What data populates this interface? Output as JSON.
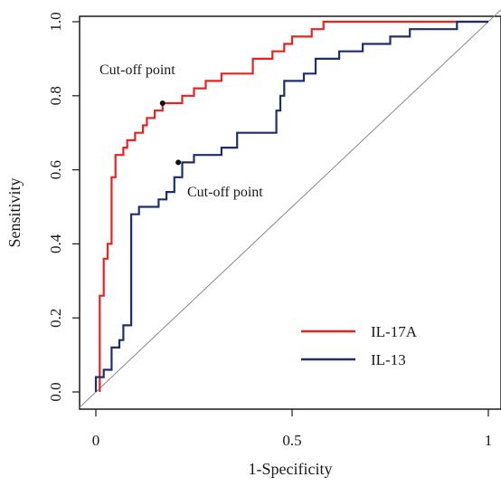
{
  "chart_data": {
    "type": "line",
    "title": "",
    "xlabel": "1-Specificity",
    "ylabel": "Sensitivity",
    "xlim": [
      0,
      1
    ],
    "ylim": [
      0,
      1
    ],
    "x_ticks": [
      0,
      0.5,
      1
    ],
    "x_tick_labels": [
      "0",
      "0.5",
      "1"
    ],
    "y_ticks": [
      0,
      0.2,
      0.4,
      0.6,
      0.8,
      1
    ],
    "y_tick_labels": [
      "0.0",
      "0.2",
      "0.4",
      "0.6",
      "0.8",
      "1.0"
    ],
    "grid": false,
    "legend_position": "bottom-right",
    "reference_line": {
      "x": [
        0,
        1
      ],
      "y": [
        0,
        1
      ],
      "color": "#888888"
    },
    "series": [
      {
        "name": "IL-17A",
        "color": "#e8231f",
        "x": [
          0.01,
          0.01,
          0.02,
          0.02,
          0.03,
          0.03,
          0.04,
          0.04,
          0.05,
          0.05,
          0.07,
          0.07,
          0.08,
          0.08,
          0.1,
          0.1,
          0.12,
          0.12,
          0.13,
          0.13,
          0.15,
          0.15,
          0.17,
          0.17,
          0.22,
          0.22,
          0.25,
          0.25,
          0.28,
          0.28,
          0.32,
          0.32,
          0.35,
          0.35,
          0.4,
          0.4,
          0.45,
          0.45,
          0.48,
          0.48,
          0.5,
          0.5,
          0.53,
          0.53,
          0.55,
          0.55,
          0.58,
          0.58,
          0.6,
          1.0
        ],
        "y": [
          0.0,
          0.26,
          0.26,
          0.36,
          0.36,
          0.4,
          0.4,
          0.58,
          0.58,
          0.64,
          0.64,
          0.66,
          0.66,
          0.68,
          0.68,
          0.7,
          0.7,
          0.72,
          0.72,
          0.74,
          0.74,
          0.76,
          0.76,
          0.78,
          0.78,
          0.8,
          0.8,
          0.82,
          0.82,
          0.84,
          0.84,
          0.86,
          0.86,
          0.86,
          0.86,
          0.9,
          0.9,
          0.92,
          0.92,
          0.94,
          0.94,
          0.96,
          0.96,
          0.96,
          0.96,
          0.98,
          0.98,
          1.0,
          1.0,
          1.0
        ],
        "cutoff": {
          "x": 0.17,
          "y": 0.78
        }
      },
      {
        "name": "IL-13",
        "color": "#1f2f6e",
        "x": [
          0.0,
          0.0,
          0.02,
          0.02,
          0.04,
          0.04,
          0.06,
          0.06,
          0.07,
          0.07,
          0.09,
          0.09,
          0.11,
          0.11,
          0.16,
          0.16,
          0.18,
          0.18,
          0.2,
          0.2,
          0.22,
          0.22,
          0.25,
          0.25,
          0.32,
          0.32,
          0.36,
          0.36,
          0.46,
          0.46,
          0.47,
          0.47,
          0.48,
          0.48,
          0.53,
          0.53,
          0.56,
          0.56,
          0.62,
          0.62,
          0.68,
          0.68,
          0.75,
          0.75,
          0.8,
          0.8,
          0.92,
          0.92,
          1.0
        ],
        "y": [
          0.0,
          0.04,
          0.04,
          0.06,
          0.06,
          0.12,
          0.12,
          0.14,
          0.14,
          0.18,
          0.18,
          0.48,
          0.48,
          0.5,
          0.5,
          0.52,
          0.52,
          0.54,
          0.54,
          0.58,
          0.58,
          0.62,
          0.62,
          0.64,
          0.64,
          0.66,
          0.66,
          0.7,
          0.7,
          0.76,
          0.76,
          0.8,
          0.8,
          0.84,
          0.84,
          0.86,
          0.86,
          0.9,
          0.9,
          0.92,
          0.92,
          0.94,
          0.94,
          0.96,
          0.96,
          0.98,
          0.98,
          1.0,
          1.0
        ],
        "cutoff": {
          "x": 0.21,
          "y": 0.62
        }
      }
    ],
    "annotations": [
      {
        "text": "Cut-off point",
        "series": "IL-17A"
      },
      {
        "text": "Cut-off point",
        "series": "IL-13"
      }
    ]
  }
}
